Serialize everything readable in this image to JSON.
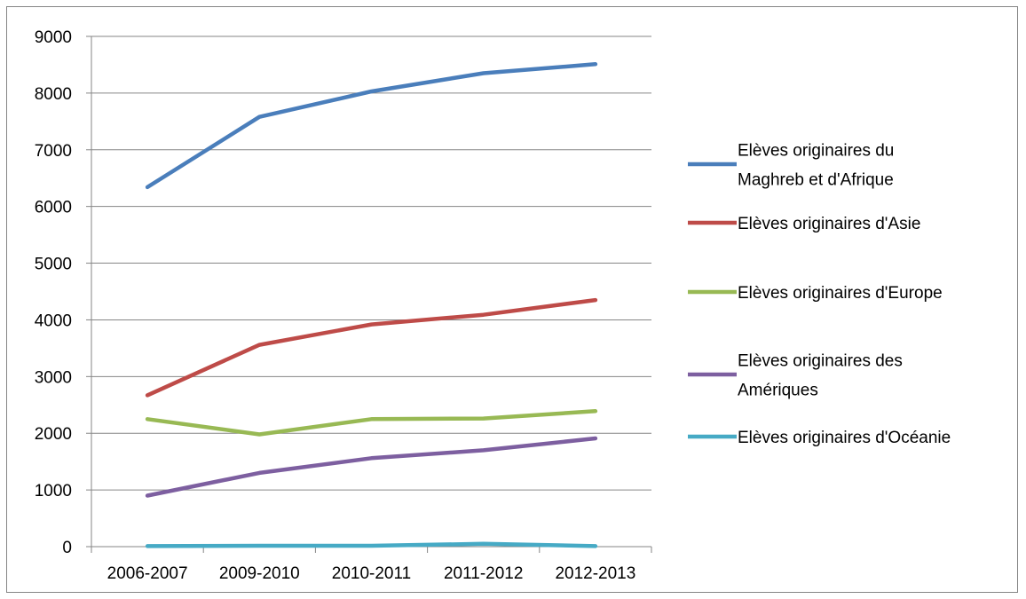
{
  "chart_data": {
    "type": "line",
    "title": "",
    "xlabel": "",
    "ylabel": "",
    "categories": [
      "2006-2007",
      "2009-2010",
      "2010-2011",
      "2011-2012",
      "2012-2013"
    ],
    "ylim": [
      0,
      9000
    ],
    "yticks": [
      0,
      1000,
      2000,
      3000,
      4000,
      5000,
      6000,
      7000,
      8000,
      9000
    ],
    "grid": true,
    "legend_position": "right",
    "series": [
      {
        "name": "Elèves originaires du Maghreb et d'Afrique",
        "name_lines": [
          "Elèves originaires du",
          "Maghreb et d'Afrique"
        ],
        "color": "#4A7EBB",
        "values": [
          6340,
          7580,
          8030,
          8350,
          8510
        ]
      },
      {
        "name": "Elèves originaires d'Asie",
        "name_lines": [
          "Elèves originaires d'Asie"
        ],
        "color": "#BE4B48",
        "values": [
          2670,
          3560,
          3920,
          4090,
          4350
        ]
      },
      {
        "name": "Elèves originaires d'Europe",
        "name_lines": [
          "Elèves originaires d'Europe"
        ],
        "color": "#98B954",
        "values": [
          2250,
          1980,
          2250,
          2260,
          2390
        ]
      },
      {
        "name": "Elèves originaires des Amériques",
        "name_lines": [
          "Elèves originaires des",
          "Amériques"
        ],
        "color": "#7D5FA0",
        "values": [
          900,
          1300,
          1560,
          1700,
          1910
        ]
      },
      {
        "name": "Elèves originaires d'Océanie",
        "name_lines": [
          "Elèves originaires d'Océanie"
        ],
        "color": "#46AAC5",
        "values": [
          10,
          15,
          15,
          50,
          10
        ]
      }
    ]
  }
}
